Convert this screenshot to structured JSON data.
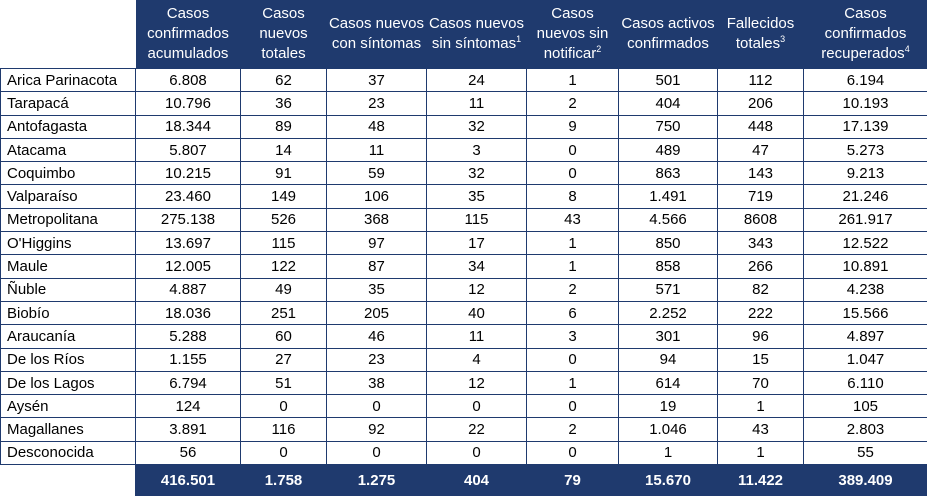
{
  "headers": [
    {
      "label": "Casos confirmados acumulados",
      "sup": ""
    },
    {
      "label": "Casos nuevos totales",
      "sup": ""
    },
    {
      "label": "Casos nuevos con síntomas",
      "sup": ""
    },
    {
      "label": "Casos nuevos sin síntomas",
      "sup": "1"
    },
    {
      "label": "Casos nuevos sin notificar",
      "sup": "2"
    },
    {
      "label": "Casos activos confirmados",
      "sup": ""
    },
    {
      "label": "Fallecidos totales",
      "sup": "3"
    },
    {
      "label": "Casos confirmados recuperados",
      "sup": "4"
    }
  ],
  "rows": [
    {
      "region": "Arica Parinacota",
      "values": [
        "6.808",
        "62",
        "37",
        "24",
        "1",
        "501",
        "112",
        "6.194"
      ]
    },
    {
      "region": "Tarapacá",
      "values": [
        "10.796",
        "36",
        "23",
        "11",
        "2",
        "404",
        "206",
        "10.193"
      ]
    },
    {
      "region": "Antofagasta",
      "values": [
        "18.344",
        "89",
        "48",
        "32",
        "9",
        "750",
        "448",
        "17.139"
      ]
    },
    {
      "region": "Atacama",
      "values": [
        "5.807",
        "14",
        "11",
        "3",
        "0",
        "489",
        "47",
        "5.273"
      ]
    },
    {
      "region": "Coquimbo",
      "values": [
        "10.215",
        "91",
        "59",
        "32",
        "0",
        "863",
        "143",
        "9.213"
      ]
    },
    {
      "region": "Valparaíso",
      "values": [
        "23.460",
        "149",
        "106",
        "35",
        "8",
        "1.491",
        "719",
        "21.246"
      ]
    },
    {
      "region": "Metropolitana",
      "values": [
        "275.138",
        "526",
        "368",
        "115",
        "43",
        "4.566",
        "8608",
        "261.917"
      ]
    },
    {
      "region": "O'Higgins",
      "values": [
        "13.697",
        "115",
        "97",
        "17",
        "1",
        "850",
        "343",
        "12.522"
      ]
    },
    {
      "region": "Maule",
      "values": [
        "12.005",
        "122",
        "87",
        "34",
        "1",
        "858",
        "266",
        "10.891"
      ]
    },
    {
      "region": "Ñuble",
      "values": [
        "4.887",
        "49",
        "35",
        "12",
        "2",
        "571",
        "82",
        "4.238"
      ]
    },
    {
      "region": "Biobío",
      "values": [
        "18.036",
        "251",
        "205",
        "40",
        "6",
        "2.252",
        "222",
        "15.566"
      ]
    },
    {
      "region": "Araucanía",
      "values": [
        "5.288",
        "60",
        "46",
        "11",
        "3",
        "301",
        "96",
        "4.897"
      ]
    },
    {
      "region": "De los Ríos",
      "values": [
        "1.155",
        "27",
        "23",
        "4",
        "0",
        "94",
        "15",
        "1.047"
      ]
    },
    {
      "region": "De los Lagos",
      "values": [
        "6.794",
        "51",
        "38",
        "12",
        "1",
        "614",
        "70",
        "6.110"
      ]
    },
    {
      "region": "Aysén",
      "values": [
        "124",
        "0",
        "0",
        "0",
        "0",
        "19",
        "1",
        "105"
      ]
    },
    {
      "region": "Magallanes",
      "values": [
        "3.891",
        "116",
        "92",
        "22",
        "2",
        "1.046",
        "43",
        "2.803"
      ]
    },
    {
      "region": "Desconocida",
      "values": [
        "56",
        "0",
        "0",
        "0",
        "0",
        "1",
        "1",
        "55"
      ]
    }
  ],
  "totals": [
    "416.501",
    "1.758",
    "1.275",
    "404",
    "79",
    "15.670",
    "11.422",
    "389.409"
  ],
  "colors": {
    "header_bg": "#1f3a6e",
    "border": "#1f3a6e"
  }
}
